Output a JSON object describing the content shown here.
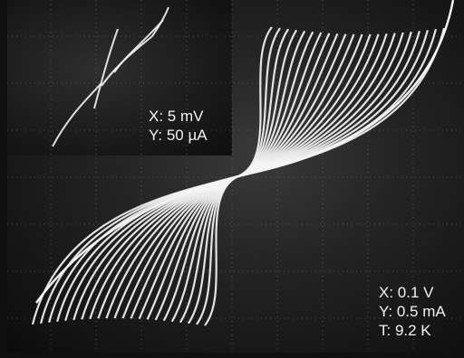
{
  "inset_scale": {
    "x": "X: 5  mV",
    "y": "Y: 50 µA"
  },
  "main_scale": {
    "x": "X: 0.1 V",
    "y": "Y: 0.5 mA",
    "t": "T: 9.2 K"
  },
  "colors": {
    "trace": "#f4f4f4",
    "grid": "#9a9a9a",
    "background": "#1a1a1a"
  },
  "trace_count": 22
}
